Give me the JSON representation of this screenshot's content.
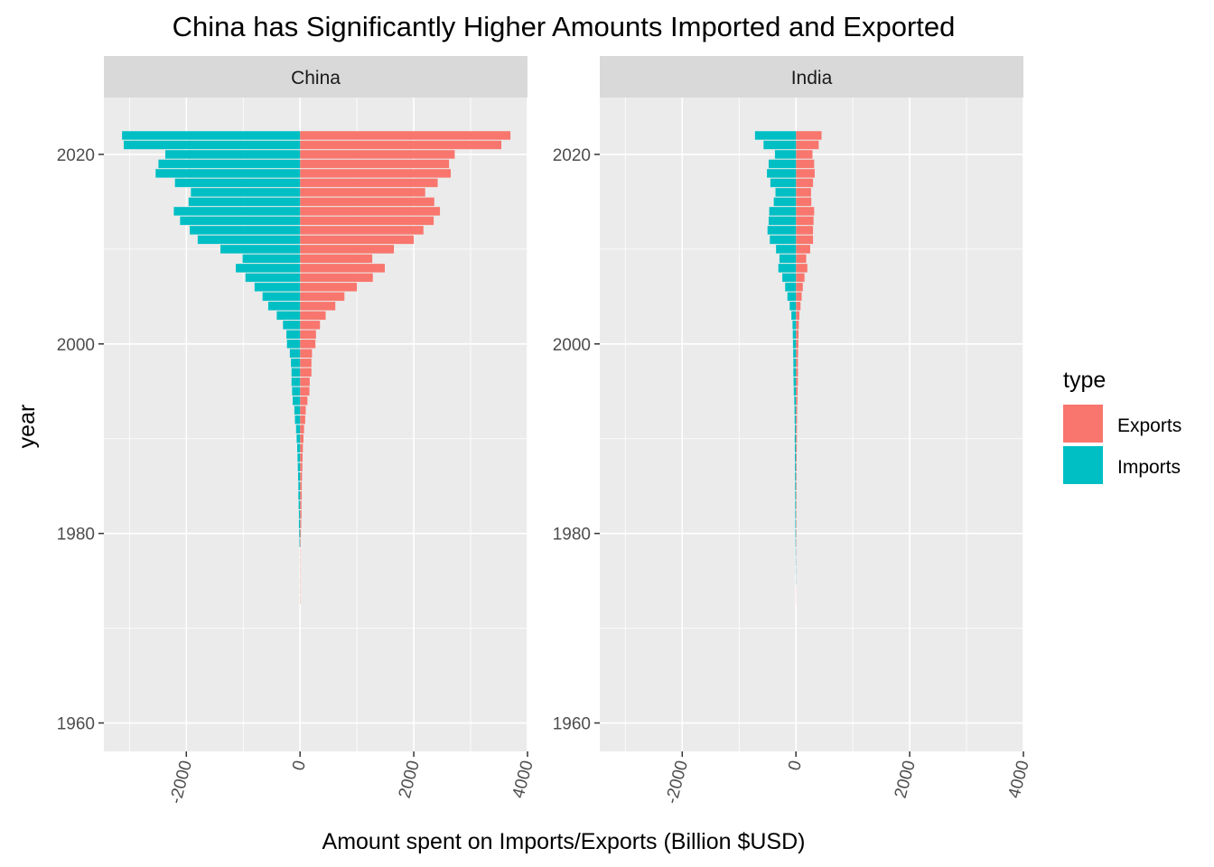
{
  "chart_data": {
    "type": "bar",
    "orientation": "horizontal",
    "title": "China has Significantly Higher Amounts Imported and Exported",
    "xlabel": "Amount spent on Imports/Exports (Billion $USD)",
    "ylabel": "year",
    "xlim": [
      -3450,
      4000
    ],
    "ylim": [
      1957,
      2026
    ],
    "x_ticks": [
      -2000,
      0,
      2000,
      4000
    ],
    "x_tick_labels": [
      "-2000",
      "0",
      "2000",
      "4000"
    ],
    "y_ticks": [
      1960,
      1980,
      2000,
      2020
    ],
    "y_tick_labels": [
      "1960",
      "1980",
      "2000",
      "2020"
    ],
    "note": "Imports are plotted as negative values (left of zero), exports as positive values.",
    "legend": {
      "title": "type",
      "position": "right",
      "entries": [
        {
          "label": "Exports",
          "color": "#F8766D"
        },
        {
          "label": "Imports",
          "color": "#00BFC4"
        }
      ]
    },
    "panels": [
      {
        "name": "China",
        "years": [
          1973,
          1974,
          1975,
          1976,
          1977,
          1978,
          1979,
          1980,
          1981,
          1982,
          1983,
          1984,
          1985,
          1986,
          1987,
          1988,
          1989,
          1990,
          1991,
          1992,
          1993,
          1994,
          1995,
          1996,
          1997,
          1998,
          1999,
          2000,
          2001,
          2002,
          2003,
          2004,
          2005,
          2006,
          2007,
          2008,
          2009,
          2010,
          2011,
          2012,
          2013,
          2014,
          2015,
          2016,
          2017,
          2018,
          2019,
          2020,
          2021,
          2022
        ],
        "exports": [
          5,
          5,
          5,
          5,
          5,
          5,
          10,
          15,
          20,
          25,
          25,
          30,
          30,
          35,
          40,
          45,
          50,
          60,
          70,
          90,
          100,
          130,
          165,
          170,
          200,
          200,
          210,
          270,
          280,
          350,
          450,
          620,
          780,
          1000,
          1280,
          1490,
          1270,
          1650,
          2000,
          2170,
          2350,
          2460,
          2360,
          2200,
          2420,
          2650,
          2620,
          2720,
          3540,
          3700
        ],
        "imports": [
          0,
          0,
          0,
          0,
          0,
          0,
          -10,
          -15,
          -20,
          -20,
          -25,
          -30,
          -30,
          -35,
          -40,
          -45,
          -50,
          -60,
          -70,
          -90,
          -100,
          -130,
          -140,
          -150,
          -150,
          -160,
          -180,
          -230,
          -240,
          -300,
          -410,
          -560,
          -660,
          -800,
          -960,
          -1130,
          -1010,
          -1400,
          -1800,
          -1940,
          -2110,
          -2220,
          -1960,
          -1920,
          -2200,
          -2540,
          -2490,
          -2370,
          -3100,
          -3130
        ]
      },
      {
        "name": "India",
        "years": [
          1973,
          1974,
          1975,
          1976,
          1977,
          1978,
          1979,
          1980,
          1981,
          1982,
          1983,
          1984,
          1985,
          1986,
          1987,
          1988,
          1989,
          1990,
          1991,
          1992,
          1993,
          1994,
          1995,
          1996,
          1997,
          1998,
          1999,
          2000,
          2001,
          2002,
          2003,
          2004,
          2005,
          2006,
          2007,
          2008,
          2009,
          2010,
          2011,
          2012,
          2013,
          2014,
          2015,
          2016,
          2017,
          2018,
          2019,
          2020,
          2021,
          2022
        ],
        "exports": [
          2,
          2,
          3,
          4,
          5,
          6,
          7,
          8,
          9,
          9,
          10,
          10,
          11,
          11,
          12,
          13,
          15,
          18,
          18,
          20,
          22,
          26,
          30,
          33,
          35,
          35,
          37,
          42,
          45,
          50,
          60,
          80,
          100,
          120,
          150,
          200,
          180,
          250,
          300,
          300,
          310,
          320,
          270,
          265,
          300,
          330,
          320,
          290,
          400,
          450
        ],
        "imports": [
          0,
          0,
          -3,
          -4,
          -5,
          -6,
          -8,
          -10,
          -11,
          -12,
          -13,
          -14,
          -15,
          -16,
          -17,
          -19,
          -20,
          -22,
          -20,
          -23,
          -25,
          -30,
          -38,
          -42,
          -45,
          -45,
          -48,
          -52,
          -55,
          -60,
          -80,
          -110,
          -150,
          -190,
          -240,
          -310,
          -290,
          -350,
          -460,
          -500,
          -480,
          -470,
          -390,
          -360,
          -450,
          -510,
          -480,
          -370,
          -570,
          -720
        ]
      }
    ]
  }
}
